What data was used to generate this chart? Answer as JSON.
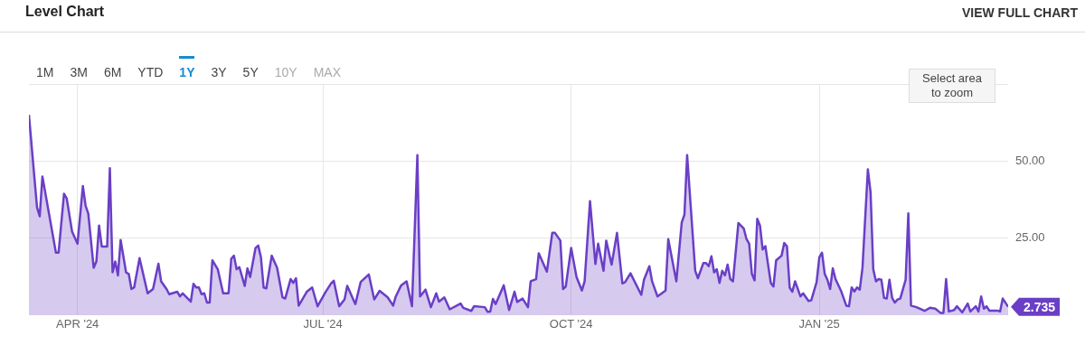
{
  "chart_data": {
    "type": "area",
    "title": "Level Chart",
    "color": "#6a3fc6",
    "grid": true,
    "annotations": [
      "VIEW FULL CHART",
      "1M",
      "3M",
      "6M",
      "YTD",
      "1Y",
      "3Y",
      "5Y",
      "10Y",
      "MAX",
      "Select area to zoom",
      {
        "text": "2.735",
        "x": "2025-03-12",
        "y": 2.735
      }
    ],
    "xlim": [
      "2024-03-14",
      "2025-03-12"
    ],
    "xticks": [
      {
        "value": "2024-04-01",
        "label": "APR '24"
      },
      {
        "value": "2024-07-01",
        "label": "JUL '24"
      },
      {
        "value": "2024-10-01",
        "label": "OCT '24"
      },
      {
        "value": "2025-01-01",
        "label": "JAN '25"
      }
    ],
    "ylim": [
      0,
      75
    ],
    "yticks": [
      {
        "value": 25,
        "label": "25.00"
      },
      {
        "value": 50,
        "label": "50.00"
      },
      {
        "value": 75,
        "label": null
      }
    ],
    "x": [
      "2024-03-14",
      "2024-03-17",
      "2024-03-18",
      "2024-03-19",
      "2024-03-24",
      "2024-03-25",
      "2024-03-27",
      "2024-03-28",
      "2024-03-30",
      "2024-04-01",
      "2024-04-03",
      "2024-04-04",
      "2024-04-05",
      "2024-04-07",
      "2024-04-08",
      "2024-04-09",
      "2024-04-10",
      "2024-04-12",
      "2024-04-13",
      "2024-04-14",
      "2024-04-15",
      "2024-04-16",
      "2024-04-17",
      "2024-04-19",
      "2024-04-20",
      "2024-04-21",
      "2024-04-22",
      "2024-04-24",
      "2024-04-27",
      "2024-04-29",
      "2024-05-01",
      "2024-05-02",
      "2024-05-04",
      "2024-05-05",
      "2024-05-08",
      "2024-05-09",
      "2024-05-10",
      "2024-05-13",
      "2024-05-14",
      "2024-05-15",
      "2024-05-16",
      "2024-05-17",
      "2024-05-18",
      "2024-05-19",
      "2024-05-20",
      "2024-05-21",
      "2024-05-23",
      "2024-05-25",
      "2024-05-27",
      "2024-05-28",
      "2024-05-29",
      "2024-05-30",
      "2024-05-31",
      "2024-06-02",
      "2024-06-03",
      "2024-06-04",
      "2024-06-06",
      "2024-06-07",
      "2024-06-08",
      "2024-06-09",
      "2024-06-10",
      "2024-06-12",
      "2024-06-14",
      "2024-06-16",
      "2024-06-17",
      "2024-06-19",
      "2024-06-20",
      "2024-06-21",
      "2024-06-22",
      "2024-06-25",
      "2024-06-27",
      "2024-06-29",
      "2024-07-02",
      "2024-07-04",
      "2024-07-05",
      "2024-07-07",
      "2024-07-09",
      "2024-07-10",
      "2024-07-13",
      "2024-07-15",
      "2024-07-18",
      "2024-07-20",
      "2024-07-22",
      "2024-07-25",
      "2024-07-27",
      "2024-07-28",
      "2024-07-30",
      "2024-08-01",
      "2024-08-03",
      "2024-08-05",
      "2024-08-06",
      "2024-08-08",
      "2024-08-10",
      "2024-08-12",
      "2024-08-13",
      "2024-08-15",
      "2024-08-17",
      "2024-08-21",
      "2024-08-22",
      "2024-08-25",
      "2024-08-26",
      "2024-08-30",
      "2024-08-31",
      "2024-09-01",
      "2024-09-02",
      "2024-09-03",
      "2024-09-06",
      "2024-09-08",
      "2024-09-10",
      "2024-09-11",
      "2024-09-13",
      "2024-09-15",
      "2024-09-16",
      "2024-09-18",
      "2024-09-19",
      "2024-09-22",
      "2024-09-24",
      "2024-09-25",
      "2024-09-27",
      "2024-09-28",
      "2024-09-29",
      "2024-10-01",
      "2024-10-03",
      "2024-10-05",
      "2024-10-06",
      "2024-10-08",
      "2024-10-10",
      "2024-10-11",
      "2024-10-13",
      "2024-10-14",
      "2024-10-16",
      "2024-10-18",
      "2024-10-20",
      "2024-10-21",
      "2024-10-23",
      "2024-10-27",
      "2024-10-28",
      "2024-10-30",
      "2024-10-31",
      "2024-11-02",
      "2024-11-05",
      "2024-11-06",
      "2024-11-09",
      "2024-11-11",
      "2024-11-12",
      "2024-11-13",
      "2024-11-14",
      "2024-11-16",
      "2024-11-17",
      "2024-11-19",
      "2024-11-20",
      "2024-11-21",
      "2024-11-22",
      "2024-11-23",
      "2024-11-24",
      "2024-11-25",
      "2024-11-26",
      "2024-11-27",
      "2024-11-28",
      "2024-11-29",
      "2024-11-30",
      "2024-12-02",
      "2024-12-04",
      "2024-12-05",
      "2024-12-06",
      "2024-12-07",
      "2024-12-08",
      "2024-12-09",
      "2024-12-10",
      "2024-12-11",
      "2024-12-12",
      "2024-12-14",
      "2024-12-15",
      "2024-12-16",
      "2024-12-18",
      "2024-12-19",
      "2024-12-20",
      "2024-12-21",
      "2024-12-22",
      "2024-12-23",
      "2024-12-25",
      "2024-12-26",
      "2024-12-28",
      "2024-12-29",
      "2024-12-31",
      "2025-01-01",
      "2025-01-02",
      "2025-01-03",
      "2025-01-04",
      "2025-01-05",
      "2025-01-06",
      "2025-01-07",
      "2025-01-09",
      "2025-01-11",
      "2025-01-12",
      "2025-01-13",
      "2025-01-14",
      "2025-01-15",
      "2025-01-16",
      "2025-01-17",
      "2025-01-19",
      "2025-01-20",
      "2025-01-21",
      "2025-01-22",
      "2025-01-23",
      "2025-01-24",
      "2025-01-25",
      "2025-01-26",
      "2025-01-27",
      "2025-01-28",
      "2025-01-29",
      "2025-01-30",
      "2025-01-31",
      "2025-02-02",
      "2025-02-03",
      "2025-02-04",
      "2025-02-06",
      "2025-02-09",
      "2025-02-11",
      "2025-02-13",
      "2025-02-15",
      "2025-02-16",
      "2025-02-17",
      "2025-02-18",
      "2025-02-20",
      "2025-02-21",
      "2025-02-23",
      "2025-02-25",
      "2025-02-26",
      "2025-02-28",
      "2025-03-01",
      "2025-03-02",
      "2025-03-03",
      "2025-03-04",
      "2025-03-05",
      "2025-03-08",
      "2025-03-09",
      "2025-03-10",
      "2025-03-12"
    ],
    "values": [
      65.0,
      35.0,
      32.1,
      45.0,
      20.3,
      20.3,
      39.4,
      37.9,
      27.1,
      23.2,
      41.9,
      35.5,
      33.0,
      15.4,
      17.4,
      29.1,
      22.3,
      22.3,
      47.7,
      13.9,
      17.4,
      12.9,
      24.4,
      13.9,
      13.4,
      8.5,
      9.0,
      18.5,
      7.1,
      8.5,
      16.7,
      11.0,
      8.5,
      6.8,
      7.6,
      6.1,
      7.1,
      4.4,
      10.2,
      9.0,
      9.0,
      6.8,
      7.1,
      4.1,
      4.1,
      17.8,
      14.9,
      7.1,
      7.1,
      18.3,
      19.3,
      14.9,
      15.6,
      9.5,
      15.2,
      12.4,
      21.8,
      22.6,
      18.8,
      9.0,
      8.7,
      19.3,
      15.4,
      5.8,
      5.4,
      11.7,
      10.5,
      12.0,
      3.1,
      7.6,
      9.0,
      2.9,
      7.6,
      10.3,
      11.2,
      2.9,
      5.1,
      9.5,
      3.6,
      10.8,
      13.2,
      5.1,
      7.9,
      5.8,
      3.1,
      6.1,
      9.7,
      11.0,
      2.9,
      51.9,
      6.1,
      8.3,
      2.6,
      7.1,
      4.4,
      5.8,
      1.9,
      3.8,
      2.4,
      1.4,
      2.9,
      2.6,
      1.1,
      1.2,
      5.3,
      3.6,
      9.7,
      1.7,
      7.6,
      4.3,
      5.4,
      2.6,
      11.0,
      11.7,
      20.1,
      14.1,
      26.7,
      26.7,
      24.2,
      8.5,
      9.3,
      21.8,
      12.4,
      8.0,
      11.0,
      37.0,
      16.6,
      23.2,
      14.4,
      24.2,
      16.4,
      26.7,
      10.3,
      10.7,
      13.6,
      6.6,
      11.5,
      15.9,
      11.0,
      6.1,
      8.0,
      24.7,
      11.0,
      30.1,
      32.6,
      51.9,
      39.4,
      14.4,
      12.0,
      16.9,
      16.9,
      15.9,
      19.1,
      13.9,
      14.9,
      10.5,
      14.4,
      12.9,
      16.4,
      11.7,
      11.0,
      29.9,
      28.1,
      24.7,
      23.2,
      13.4,
      11.3,
      31.3,
      29.1,
      21.3,
      22.4,
      10.5,
      9.3,
      17.8,
      19.3,
      23.4,
      22.3,
      9.0,
      7.6,
      11.0,
      6.1,
      7.1,
      4.6,
      4.8,
      10.7,
      18.8,
      20.3,
      13.4,
      11.5,
      8.5,
      15.2,
      11.7,
      8.0,
      3.1,
      2.9,
      9.0,
      7.7,
      9.0,
      8.3,
      15.4,
      47.3,
      39.9,
      14.9,
      11.0,
      11.7,
      11.5,
      5.6,
      5.4,
      11.5,
      5.6,
      4.1,
      5.1,
      5.4,
      11.5,
      33.0,
      3.1,
      2.6,
      1.4,
      2.4,
      2.1,
      0.7,
      0.7,
      11.7,
      1.2,
      1.7,
      2.9,
      0.9,
      3.8,
      1.2,
      2.9,
      1.2,
      6.1,
      2.1,
      2.9,
      1.5,
      1.5,
      1.2,
      5.4,
      2.735
    ]
  }
}
